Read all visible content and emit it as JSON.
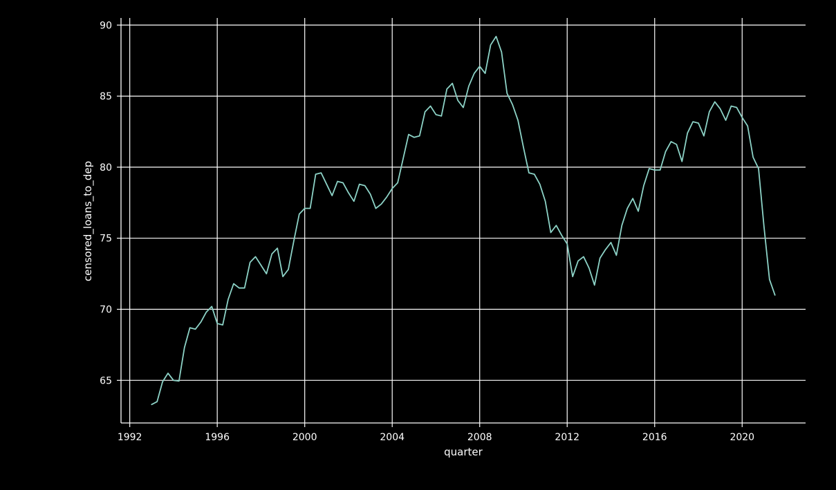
{
  "chart_data": {
    "type": "line",
    "title": "",
    "xlabel": "quarter",
    "ylabel": "censored_loans_to_dep",
    "xlim": [
      1991.6,
      2022.9
    ],
    "ylim": [
      62.0,
      90.5
    ],
    "xticks": [
      1992,
      1996,
      2000,
      2004,
      2008,
      2012,
      2016,
      2020
    ],
    "yticks": [
      65,
      70,
      75,
      80,
      85,
      90
    ],
    "grid": true,
    "legend": "none",
    "colors": {
      "background": "#000000",
      "line": "#8dd3c7",
      "grid": "#ffffff",
      "text": "#ffffff"
    },
    "series": [
      {
        "x": [
          1993.0,
          1993.25,
          1993.5,
          1993.75,
          1994.0,
          1994.25,
          1994.5,
          1994.75,
          1995.0,
          1995.25,
          1995.5,
          1995.75,
          1996.0,
          1996.25,
          1996.5,
          1996.75,
          1997.0,
          1997.25,
          1997.5,
          1997.75,
          1998.0,
          1998.25,
          1998.5,
          1998.75,
          1999.0,
          1999.25,
          1999.5,
          1999.75,
          2000.0,
          2000.25,
          2000.5,
          2000.75,
          2001.0,
          2001.25,
          2001.5,
          2001.75,
          2002.0,
          2002.25,
          2002.5,
          2002.75,
          2003.0,
          2003.25,
          2003.5,
          2003.75,
          2004.0,
          2004.25,
          2004.5,
          2004.75,
          2005.0,
          2005.25,
          2005.5,
          2005.75,
          2006.0,
          2006.25,
          2006.5,
          2006.75,
          2007.0,
          2007.25,
          2007.5,
          2007.75,
          2008.0,
          2008.25,
          2008.5,
          2008.75,
          2009.0,
          2009.25,
          2009.5,
          2009.75,
          2010.0,
          2010.25,
          2010.5,
          2010.75,
          2011.0,
          2011.25,
          2011.5,
          2011.75,
          2012.0,
          2012.25,
          2012.5,
          2012.75,
          2013.0,
          2013.25,
          2013.5,
          2013.75,
          2014.0,
          2014.25,
          2014.5,
          2014.75,
          2015.0,
          2015.25,
          2015.5,
          2015.75,
          2016.0,
          2016.25,
          2016.5,
          2016.75,
          2017.0,
          2017.25,
          2017.5,
          2017.75,
          2018.0,
          2018.25,
          2018.5,
          2018.75,
          2019.0,
          2019.25,
          2019.5,
          2019.75,
          2020.0,
          2020.25,
          2020.5,
          2020.75,
          2021.0,
          2021.25,
          2021.5
        ],
        "y": [
          63.3,
          63.5,
          64.9,
          65.5,
          65.0,
          64.95,
          67.3,
          68.7,
          68.6,
          69.1,
          69.8,
          70.2,
          69.0,
          68.9,
          70.7,
          71.8,
          71.5,
          71.5,
          73.3,
          73.7,
          73.1,
          72.5,
          73.9,
          74.3,
          72.3,
          72.8,
          74.8,
          76.7,
          77.1,
          77.1,
          79.5,
          79.6,
          78.8,
          78.0,
          79.0,
          78.9,
          78.2,
          77.6,
          78.8,
          78.7,
          78.1,
          77.1,
          77.4,
          77.9,
          78.5,
          78.9,
          80.6,
          82.3,
          82.1,
          82.2,
          83.9,
          84.3,
          83.7,
          83.6,
          85.5,
          85.9,
          84.7,
          84.2,
          85.7,
          86.6,
          87.1,
          86.6,
          88.6,
          89.2,
          88.1,
          85.2,
          84.4,
          83.3,
          81.4,
          79.6,
          79.5,
          78.8,
          77.6,
          75.4,
          75.9,
          75.2,
          74.6,
          72.3,
          73.4,
          73.7,
          72.9,
          71.7,
          73.6,
          74.2,
          74.7,
          73.8,
          75.9,
          77.1,
          77.8,
          76.9,
          78.7,
          79.9,
          79.8,
          79.8,
          81.1,
          81.8,
          81.6,
          80.4,
          82.4,
          83.2,
          83.1,
          82.2,
          83.9,
          84.6,
          84.1,
          83.3,
          84.3,
          84.2,
          83.5,
          82.9,
          80.7,
          79.9,
          75.8,
          72.1,
          71.0
        ]
      }
    ]
  }
}
